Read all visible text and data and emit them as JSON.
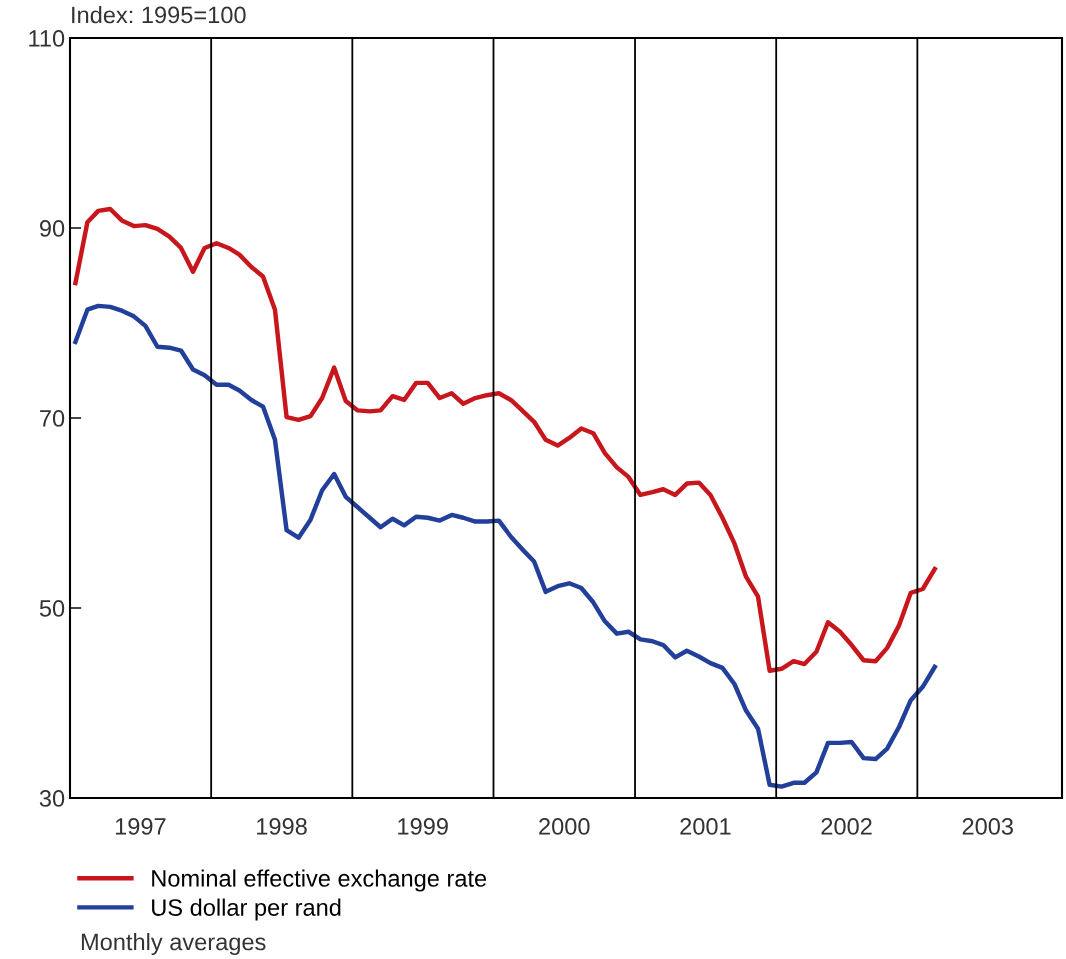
{
  "chart_data": {
    "type": "line",
    "ylabel": "Index: 1995=100",
    "x": [
      "1997-01-15",
      "1997-02-15",
      "1997-03-15",
      "1997-04-15",
      "1997-05-15",
      "1997-06-15",
      "1997-07-15",
      "1997-08-15",
      "1997-09-15",
      "1997-10-15",
      "1997-11-15",
      "1997-12-15",
      "1998-01-15",
      "1998-02-15",
      "1998-03-15",
      "1998-04-15",
      "1998-05-15",
      "1998-06-15",
      "1998-07-15",
      "1998-08-15",
      "1998-09-15",
      "1998-10-15",
      "1998-11-15",
      "1998-12-15",
      "1999-01-15",
      "1999-02-15",
      "1999-03-15",
      "1999-04-15",
      "1999-05-15",
      "1999-06-15",
      "1999-07-15",
      "1999-08-15",
      "1999-09-15",
      "1999-10-15",
      "1999-11-15",
      "1999-12-15",
      "2000-01-15",
      "2000-02-15",
      "2000-03-15",
      "2000-04-15",
      "2000-05-15",
      "2000-06-15",
      "2000-07-15",
      "2000-08-15",
      "2000-09-15",
      "2000-10-15",
      "2000-11-15",
      "2000-12-15",
      "2001-01-15",
      "2001-02-15",
      "2001-03-15",
      "2001-04-15",
      "2001-05-15",
      "2001-06-15",
      "2001-07-15",
      "2001-08-15",
      "2001-09-15",
      "2001-10-15",
      "2001-11-15",
      "2001-12-15",
      "2002-01-15",
      "2002-02-15",
      "2002-03-15",
      "2002-04-15",
      "2002-05-15",
      "2002-06-15",
      "2002-07-15",
      "2002-08-15",
      "2002-09-15",
      "2002-10-15",
      "2002-11-15",
      "2002-12-15",
      "2003-01-15",
      "2003-02-15"
    ],
    "series": [
      {
        "name": "Nominal effective exchange rate",
        "color": "#c8161d",
        "values": [
          84.2,
          90.6,
          91.8,
          92.0,
          90.8,
          90.2,
          90.3,
          89.9,
          89.1,
          87.9,
          85.4,
          87.9,
          88.4,
          87.9,
          87.2,
          85.9,
          84.9,
          81.4,
          70.1,
          69.8,
          70.2,
          72.1,
          75.3,
          71.8,
          70.8,
          70.7,
          70.8,
          72.3,
          71.9,
          73.7,
          73.7,
          72.1,
          72.6,
          71.5,
          72.1,
          72.4,
          72.6,
          71.9,
          70.8,
          69.6,
          67.7,
          67.1,
          67.9,
          68.9,
          68.4,
          66.3,
          64.8,
          63.8,
          61.9,
          62.2,
          62.5,
          61.9,
          63.1,
          63.2,
          61.9,
          59.5,
          56.8,
          53.3,
          51.2,
          43.4,
          43.6,
          44.4,
          44.1,
          45.4,
          48.5,
          47.5,
          46.1,
          44.5,
          44.4,
          45.8,
          48.2,
          51.6,
          52.0,
          54.1
        ]
      },
      {
        "name": "US dollar per rand",
        "color": "#22409a",
        "values": [
          78.0,
          81.4,
          81.8,
          81.7,
          81.3,
          80.7,
          79.7,
          77.5,
          77.4,
          77.1,
          75.1,
          74.5,
          73.5,
          73.5,
          72.9,
          71.9,
          71.2,
          67.7,
          58.2,
          57.4,
          59.3,
          62.4,
          64.1,
          61.7,
          60.6,
          59.5,
          58.5,
          59.4,
          58.7,
          59.6,
          59.5,
          59.2,
          59.8,
          59.5,
          59.1,
          59.1,
          59.2,
          57.5,
          56.2,
          54.9,
          51.7,
          52.3,
          52.6,
          52.1,
          50.6,
          48.6,
          47.3,
          47.5,
          46.7,
          46.5,
          46.1,
          44.8,
          45.5,
          44.9,
          44.2,
          43.7,
          42.0,
          39.2,
          37.3,
          31.4,
          31.2,
          31.6,
          31.6,
          32.7,
          35.8,
          35.8,
          35.9,
          34.2,
          34.1,
          35.2,
          37.5,
          40.3,
          41.7,
          43.8
        ]
      }
    ],
    "xlim": [
      "1997-01-01",
      "2004-01-10"
    ],
    "xticks": [
      {
        "value": "1997-07-02",
        "label": "1997"
      },
      {
        "value": "1998-07-02",
        "label": "1998"
      },
      {
        "value": "1999-07-02",
        "label": "1999"
      },
      {
        "value": "2000-07-02",
        "label": "2000"
      },
      {
        "value": "2001-07-02",
        "label": "2001"
      },
      {
        "value": "2002-07-02",
        "label": "2002"
      },
      {
        "value": "2003-07-02",
        "label": "2003"
      }
    ],
    "ylim": [
      30,
      110
    ],
    "yticks": [
      30,
      50,
      70,
      90,
      110
    ],
    "ref_lines": [
      {
        "axis": "x",
        "value": "1998-01-01",
        "color": "#000000"
      },
      {
        "axis": "x",
        "value": "1999-01-01",
        "color": "#000000"
      },
      {
        "axis": "x",
        "value": "2000-01-01",
        "color": "#000000"
      },
      {
        "axis": "x",
        "value": "2001-01-01",
        "color": "#000000"
      },
      {
        "axis": "x",
        "value": "2002-01-01",
        "color": "#000000"
      },
      {
        "axis": "x",
        "value": "2003-01-01",
        "color": "#000000"
      }
    ],
    "annotations": [
      "Monthly averages"
    ],
    "legend": "bottom",
    "grid": false,
    "marker": "none",
    "line_style": "solid"
  }
}
